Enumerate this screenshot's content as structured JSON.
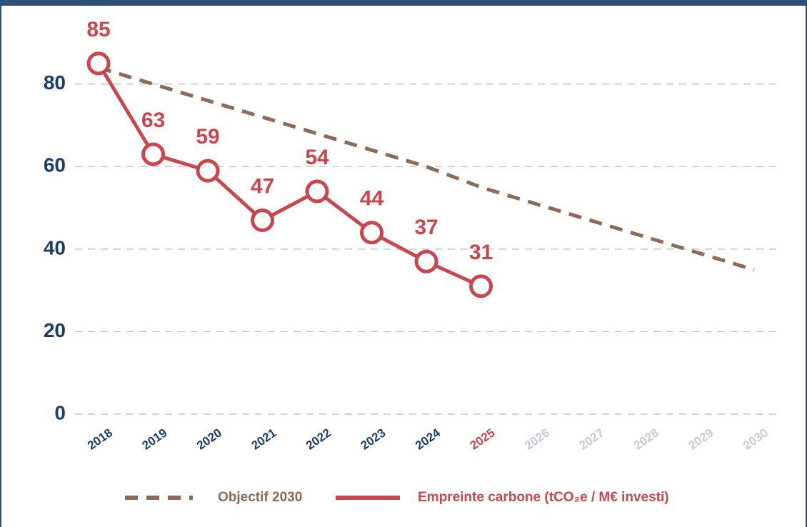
{
  "chart_data": {
    "type": "line",
    "categories": [
      "2018",
      "2019",
      "2020",
      "2021",
      "2022",
      "2023",
      "2024",
      "2025",
      "2026",
      "2027",
      "2028",
      "2029",
      "2030"
    ],
    "category_colors": [
      "#1e3d66",
      "#1e3d66",
      "#1e3d66",
      "#1e3d66",
      "#1e3d66",
      "#1e3d66",
      "#1e3d66",
      "#c8474f",
      "#c5cad3",
      "#c5cad3",
      "#c5cad3",
      "#c5cad3",
      "#c5cad3"
    ],
    "series": [
      {
        "name": "Objectif 2030",
        "color": "#8c6a55",
        "dashed": true,
        "values": [
          84,
          80,
          76,
          72,
          68,
          64,
          60,
          55,
          51,
          47,
          43,
          39,
          35
        ]
      },
      {
        "name": "Empreinte carbone (tCO₂e / M€ investi)",
        "color": "#c8474f",
        "markers": true,
        "data_labels": true,
        "values": [
          85,
          63,
          59,
          47,
          54,
          44,
          37,
          31,
          null,
          null,
          null,
          null,
          null
        ]
      }
    ],
    "ylim": [
      0,
      90
    ],
    "yticks": [
      0,
      20,
      40,
      60,
      80
    ],
    "grid": true,
    "legend": "bottom"
  }
}
